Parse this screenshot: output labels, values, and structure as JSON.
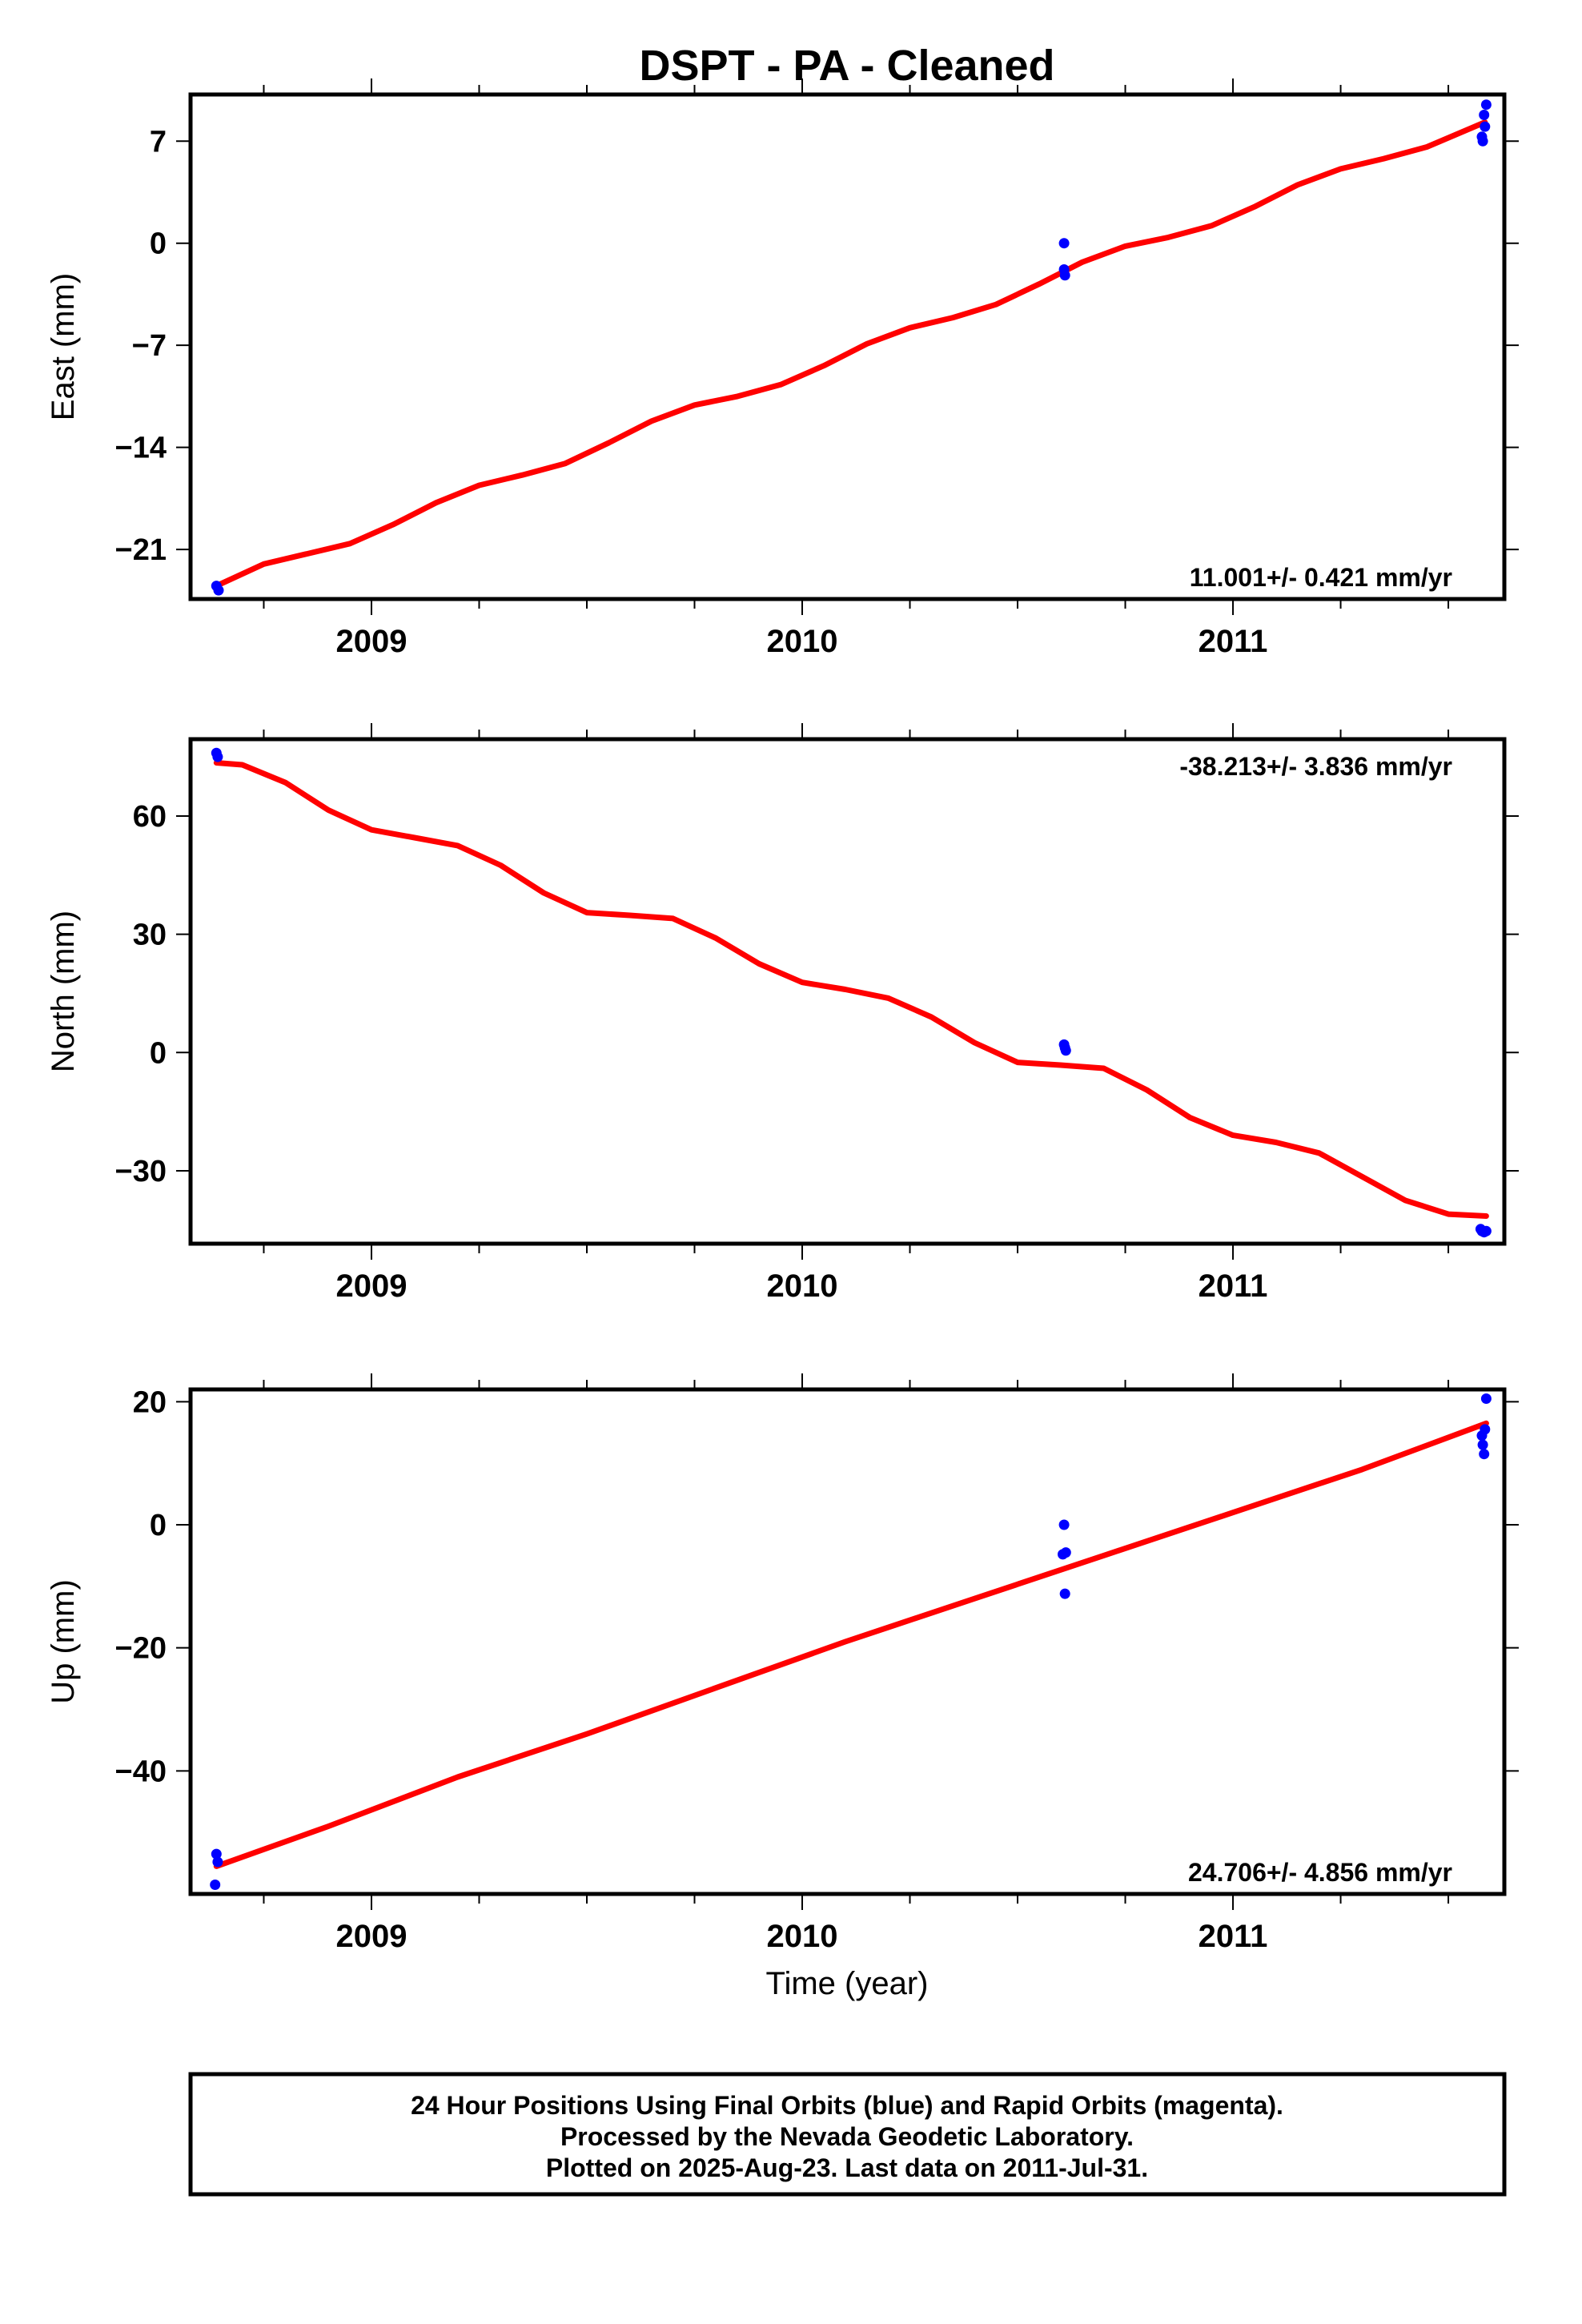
{
  "title": "DSPT  - PA - Cleaned",
  "xlabel": "Time (year)",
  "footer": {
    "line1": "24 Hour Positions Using Final Orbits (blue) and Rapid Orbits (magenta).",
    "line2": "Processed by the Nevada Geodetic Laboratory.",
    "line3": "Plotted on 2025-Aug-23. Last data on 2011-Jul-31."
  },
  "colors": {
    "data": "#0000ff",
    "fit": "#ff0000",
    "axes": "#000000"
  },
  "chart_data": [
    {
      "type": "scatter",
      "ylabel": "East (mm)",
      "rate": "11.001+/- 0.421 mm/yr",
      "rate_position": "bottom-right",
      "xlim": [
        2008.58,
        2011.63
      ],
      "ylim": [
        -24.4,
        10.2
      ],
      "xticks": [
        2009,
        2010,
        2011
      ],
      "yticks": [
        7,
        0,
        -7,
        -14,
        -21
      ],
      "ytick_labels": [
        "7",
        "0",
        "−7",
        "−14",
        "−21"
      ],
      "points": [
        [
          2008.64,
          -23.5
        ],
        [
          2008.645,
          -23.8
        ],
        [
          2010.608,
          0.0
        ],
        [
          2010.608,
          -1.8
        ],
        [
          2010.61,
          -2.2
        ],
        [
          2011.578,
          7.3
        ],
        [
          2011.58,
          7.0
        ],
        [
          2011.583,
          8.8
        ],
        [
          2011.585,
          8.0
        ],
        [
          2011.588,
          9.5
        ]
      ],
      "fit": [
        [
          2008.64,
          -23.5
        ],
        [
          2008.75,
          -22.0
        ],
        [
          2008.85,
          -21.3
        ],
        [
          2008.95,
          -20.6
        ],
        [
          2009.05,
          -19.3
        ],
        [
          2009.15,
          -17.8
        ],
        [
          2009.25,
          -16.6
        ],
        [
          2009.35,
          -15.9
        ],
        [
          2009.45,
          -15.1
        ],
        [
          2009.55,
          -13.7
        ],
        [
          2009.65,
          -12.2
        ],
        [
          2009.75,
          -11.1
        ],
        [
          2009.85,
          -10.5
        ],
        [
          2009.95,
          -9.7
        ],
        [
          2010.05,
          -8.4
        ],
        [
          2010.15,
          -6.9
        ],
        [
          2010.25,
          -5.8
        ],
        [
          2010.35,
          -5.1
        ],
        [
          2010.45,
          -4.2
        ],
        [
          2010.55,
          -2.8
        ],
        [
          2010.65,
          -1.3
        ],
        [
          2010.75,
          -0.2
        ],
        [
          2010.85,
          0.4
        ],
        [
          2010.95,
          1.2
        ],
        [
          2011.05,
          2.5
        ],
        [
          2011.15,
          4.0
        ],
        [
          2011.25,
          5.1
        ],
        [
          2011.35,
          5.8
        ],
        [
          2011.45,
          6.6
        ],
        [
          2011.585,
          8.3
        ]
      ]
    },
    {
      "type": "scatter",
      "ylabel": "North (mm)",
      "rate": "-38.213+/- 3.836 mm/yr",
      "rate_position": "top-right",
      "xlim": [
        2008.58,
        2011.63
      ],
      "ylim": [
        -48.5,
        79.5
      ],
      "xticks": [
        2009,
        2010,
        2011
      ],
      "yticks": [
        60,
        30,
        0,
        -30
      ],
      "ytick_labels": [
        "60",
        "30",
        "0",
        "−30"
      ],
      "points": [
        [
          2008.64,
          76.0
        ],
        [
          2008.643,
          75.0
        ],
        [
          2010.608,
          2.0
        ],
        [
          2010.61,
          1.2
        ],
        [
          2010.612,
          0.5
        ],
        [
          2011.575,
          -44.8
        ],
        [
          2011.578,
          -45.3
        ],
        [
          2011.583,
          -45.6
        ],
        [
          2011.588,
          -45.3
        ]
      ],
      "fit": [
        [
          2008.64,
          73.5
        ],
        [
          2008.7,
          73.0
        ],
        [
          2008.8,
          68.5
        ],
        [
          2008.9,
          61.5
        ],
        [
          2009.0,
          56.5
        ],
        [
          2009.1,
          54.5
        ],
        [
          2009.2,
          52.5
        ],
        [
          2009.3,
          47.5
        ],
        [
          2009.4,
          40.5
        ],
        [
          2009.5,
          35.5
        ],
        [
          2009.6,
          34.8
        ],
        [
          2009.7,
          34.0
        ],
        [
          2009.8,
          29.0
        ],
        [
          2009.9,
          22.5
        ],
        [
          2010.0,
          17.8
        ],
        [
          2010.1,
          16.0
        ],
        [
          2010.2,
          13.8
        ],
        [
          2010.3,
          9.0
        ],
        [
          2010.4,
          2.5
        ],
        [
          2010.5,
          -2.5
        ],
        [
          2010.6,
          -3.2
        ],
        [
          2010.7,
          -4.0
        ],
        [
          2010.8,
          -9.5
        ],
        [
          2010.9,
          -16.5
        ],
        [
          2011.0,
          -21.0
        ],
        [
          2011.1,
          -22.8
        ],
        [
          2011.2,
          -25.5
        ],
        [
          2011.3,
          -31.5
        ],
        [
          2011.4,
          -37.5
        ],
        [
          2011.5,
          -41.0
        ],
        [
          2011.588,
          -41.5
        ]
      ]
    },
    {
      "type": "scatter",
      "ylabel": "Up (mm)",
      "rate": "24.706+/- 4.856 mm/yr",
      "rate_position": "bottom-right",
      "xlim": [
        2008.58,
        2011.63
      ],
      "ylim": [
        -60,
        22
      ],
      "xticks": [
        2009,
        2010,
        2011
      ],
      "yticks": [
        20,
        0,
        -20,
        -40
      ],
      "ytick_labels": [
        "20",
        "0",
        "−20",
        "−40"
      ],
      "points": [
        [
          2008.64,
          -53.5
        ],
        [
          2008.643,
          -54.8
        ],
        [
          2008.637,
          -58.5
        ],
        [
          2010.608,
          0.0
        ],
        [
          2010.605,
          -4.8
        ],
        [
          2010.612,
          -4.5
        ],
        [
          2010.61,
          -11.2
        ],
        [
          2011.578,
          14.5
        ],
        [
          2011.58,
          13.0
        ],
        [
          2011.583,
          11.5
        ],
        [
          2011.585,
          15.5
        ],
        [
          2011.588,
          20.5
        ]
      ],
      "fit": [
        [
          2008.64,
          -55.5
        ],
        [
          2008.9,
          -49.0
        ],
        [
          2009.2,
          -41.0
        ],
        [
          2009.5,
          -34.0
        ],
        [
          2009.8,
          -26.5
        ],
        [
          2010.1,
          -19.0
        ],
        [
          2010.4,
          -12.0
        ],
        [
          2010.7,
          -5.0
        ],
        [
          2011.0,
          2.0
        ],
        [
          2011.3,
          9.0
        ],
        [
          2011.588,
          16.5
        ]
      ]
    }
  ]
}
